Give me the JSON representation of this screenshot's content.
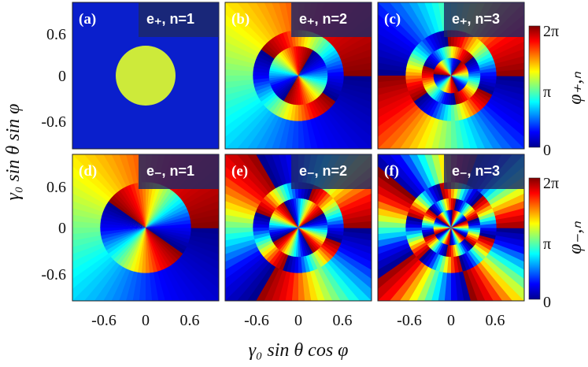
{
  "figure": {
    "ylabel": "γ₀ sin θ sin φ",
    "xlabel": "γ₀ sin θ cos φ",
    "x_ticks": [
      "-0.6",
      "0",
      "0.6"
    ],
    "y_ticks": [
      "0.6",
      "0",
      "-0.6"
    ],
    "colorbars": [
      {
        "label": "φ₊,ₙ",
        "ticks": [
          "2π",
          "π",
          "0"
        ]
      },
      {
        "label": "φ₋,ₙ",
        "ticks": [
          "2π",
          "π",
          "0"
        ]
      }
    ],
    "colormap": [
      "#00008f",
      "#0000ff",
      "#00ffff",
      "#ffff00",
      "#ff0000",
      "#800000"
    ]
  },
  "panels": [
    {
      "label": "(a)",
      "badge": "e₊, n=1",
      "charge": 0,
      "rings": 1,
      "background": "#0a1fcc"
    },
    {
      "label": "(b)",
      "badge": "e₊, n=2",
      "charge": 1,
      "rings": 2
    },
    {
      "label": "(c)",
      "badge": "e₊, n=3",
      "charge": 2,
      "rings": 3
    },
    {
      "label": "(d)",
      "badge": "e₋, n=1",
      "charge": 1,
      "rings": 1
    },
    {
      "label": "(e)",
      "badge": "e₋, n=2",
      "charge": 3,
      "rings": 2
    },
    {
      "label": "(f)",
      "badge": "e₋, n=3",
      "charge": 5,
      "rings": 3
    }
  ]
}
